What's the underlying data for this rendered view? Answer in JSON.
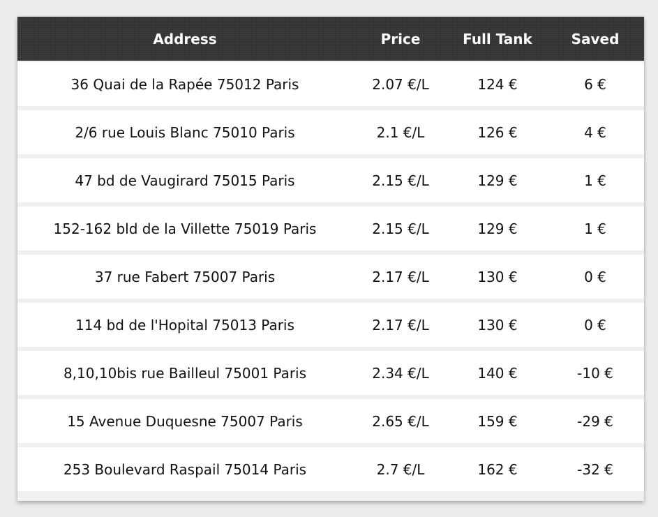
{
  "table": {
    "headers": {
      "address": "Address",
      "price": "Price",
      "full_tank": "Full Tank",
      "saved": "Saved"
    },
    "rows": [
      {
        "address": "36 Quai de la Rapée 75012 Paris",
        "price": "2.07 €/L",
        "full_tank": "124 €",
        "saved": "6 €"
      },
      {
        "address": "2/6 rue Louis Blanc 75010 Paris",
        "price": "2.1 €/L",
        "full_tank": "126 €",
        "saved": "4 €"
      },
      {
        "address": "47 bd de Vaugirard 75015 Paris",
        "price": "2.15 €/L",
        "full_tank": "129 €",
        "saved": "1 €"
      },
      {
        "address": "152-162 bld de la Villette 75019 Paris",
        "price": "2.15 €/L",
        "full_tank": "129 €",
        "saved": "1 €"
      },
      {
        "address": "37 rue Fabert 75007 Paris",
        "price": "2.17 €/L",
        "full_tank": "130 €",
        "saved": "0 €"
      },
      {
        "address": "114 bd de l'Hopital 75013 Paris",
        "price": "2.17 €/L",
        "full_tank": "130 €",
        "saved": "0 €"
      },
      {
        "address": "8,10,10bis rue Bailleul 75001 Paris",
        "price": "2.34 €/L",
        "full_tank": "140 €",
        "saved": "-10 €"
      },
      {
        "address": "15 Avenue Duquesne 75007 Paris",
        "price": "2.65 €/L",
        "full_tank": "159 €",
        "saved": "-29 €"
      },
      {
        "address": "253 Boulevard Raspail 75014 Paris",
        "price": "2.7 €/L",
        "full_tank": "162 €",
        "saved": "-32 €"
      }
    ]
  },
  "colors": {
    "header_background": "#333333",
    "header_text": "#ffffff",
    "row_background": "#ffffff",
    "row_separator": "#f0f0f0",
    "page_background": "#ececec"
  }
}
